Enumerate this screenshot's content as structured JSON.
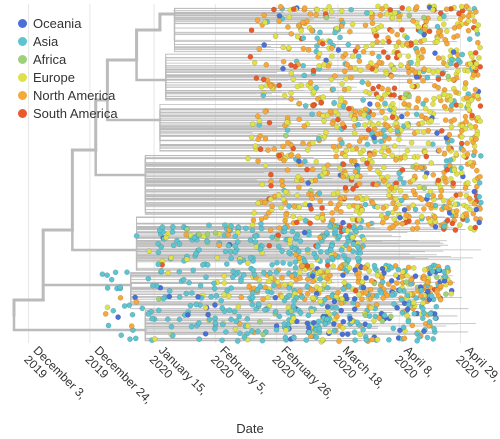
{
  "chart_data": {
    "type": "scatter",
    "title": "",
    "xlabel": "Date",
    "ylabel": "",
    "x_ticks": [
      {
        "label": "December 3, 2019",
        "date": "2019-12-03"
      },
      {
        "label": "December 24, 2019",
        "date": "2019-12-24"
      },
      {
        "label": "January 15, 2020",
        "date": "2020-01-15"
      },
      {
        "label": "February 5, 2020",
        "date": "2020-02-05"
      },
      {
        "label": "February 26, 2020",
        "date": "2020-02-26"
      },
      {
        "label": "March 18, 2020",
        "date": "2020-03-18"
      },
      {
        "label": "April 8, 2020",
        "date": "2020-04-08"
      },
      {
        "label": "April 29, 2020",
        "date": "2020-04-29"
      }
    ],
    "xlim": [
      "2019-11-28",
      "2020-05-05"
    ],
    "grid": true,
    "legend_position": "top-left",
    "series": [
      {
        "name": "Oceania",
        "color": "#4a6fd6"
      },
      {
        "name": "Asia",
        "color": "#5ec4cf"
      },
      {
        "name": "Africa",
        "color": "#9fd07a"
      },
      {
        "name": "Europe",
        "color": "#dfe14a"
      },
      {
        "name": "North America",
        "color": "#f5a83b"
      },
      {
        "name": "South America",
        "color": "#ea5a2b"
      }
    ],
    "branch_color": "#bbbbbb"
  }
}
